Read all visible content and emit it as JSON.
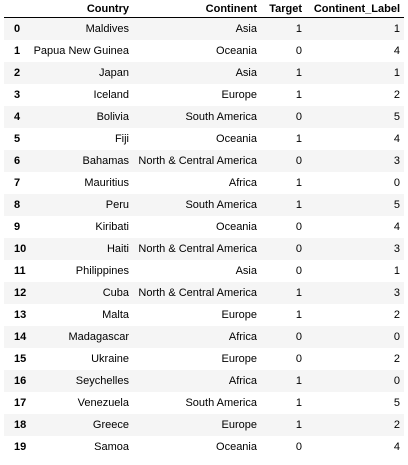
{
  "table": {
    "index_header": "",
    "columns": [
      "Country",
      "Continent",
      "Target",
      "Continent_Label"
    ],
    "rows": [
      {
        "index": "0",
        "cells": [
          "Maldives",
          "Asia",
          "1",
          "1"
        ]
      },
      {
        "index": "1",
        "cells": [
          "Papua New Guinea",
          "Oceania",
          "0",
          "4"
        ]
      },
      {
        "index": "2",
        "cells": [
          "Japan",
          "Asia",
          "1",
          "1"
        ]
      },
      {
        "index": "3",
        "cells": [
          "Iceland",
          "Europe",
          "1",
          "2"
        ]
      },
      {
        "index": "4",
        "cells": [
          "Bolivia",
          "South America",
          "0",
          "5"
        ]
      },
      {
        "index": "5",
        "cells": [
          "Fiji",
          "Oceania",
          "1",
          "4"
        ]
      },
      {
        "index": "6",
        "cells": [
          "Bahamas",
          "North & Central America",
          "0",
          "3"
        ]
      },
      {
        "index": "7",
        "cells": [
          "Mauritius",
          "Africa",
          "1",
          "0"
        ]
      },
      {
        "index": "8",
        "cells": [
          "Peru",
          "South America",
          "1",
          "5"
        ]
      },
      {
        "index": "9",
        "cells": [
          "Kiribati",
          "Oceania",
          "0",
          "4"
        ]
      },
      {
        "index": "10",
        "cells": [
          "Haiti",
          "North & Central America",
          "0",
          "3"
        ]
      },
      {
        "index": "11",
        "cells": [
          "Philippines",
          "Asia",
          "0",
          "1"
        ]
      },
      {
        "index": "12",
        "cells": [
          "Cuba",
          "North & Central America",
          "1",
          "3"
        ]
      },
      {
        "index": "13",
        "cells": [
          "Malta",
          "Europe",
          "1",
          "2"
        ]
      },
      {
        "index": "14",
        "cells": [
          "Madagascar",
          "Africa",
          "0",
          "0"
        ]
      },
      {
        "index": "15",
        "cells": [
          "Ukraine",
          "Europe",
          "0",
          "2"
        ]
      },
      {
        "index": "16",
        "cells": [
          "Seychelles",
          "Africa",
          "1",
          "0"
        ]
      },
      {
        "index": "17",
        "cells": [
          "Venezuela",
          "South America",
          "1",
          "5"
        ]
      },
      {
        "index": "18",
        "cells": [
          "Greece",
          "Europe",
          "1",
          "2"
        ]
      },
      {
        "index": "19",
        "cells": [
          "Samoa",
          "Oceania",
          "0",
          "4"
        ]
      }
    ]
  },
  "colors": {
    "stripe": "#f5f5f5",
    "header_border": "#000000"
  }
}
